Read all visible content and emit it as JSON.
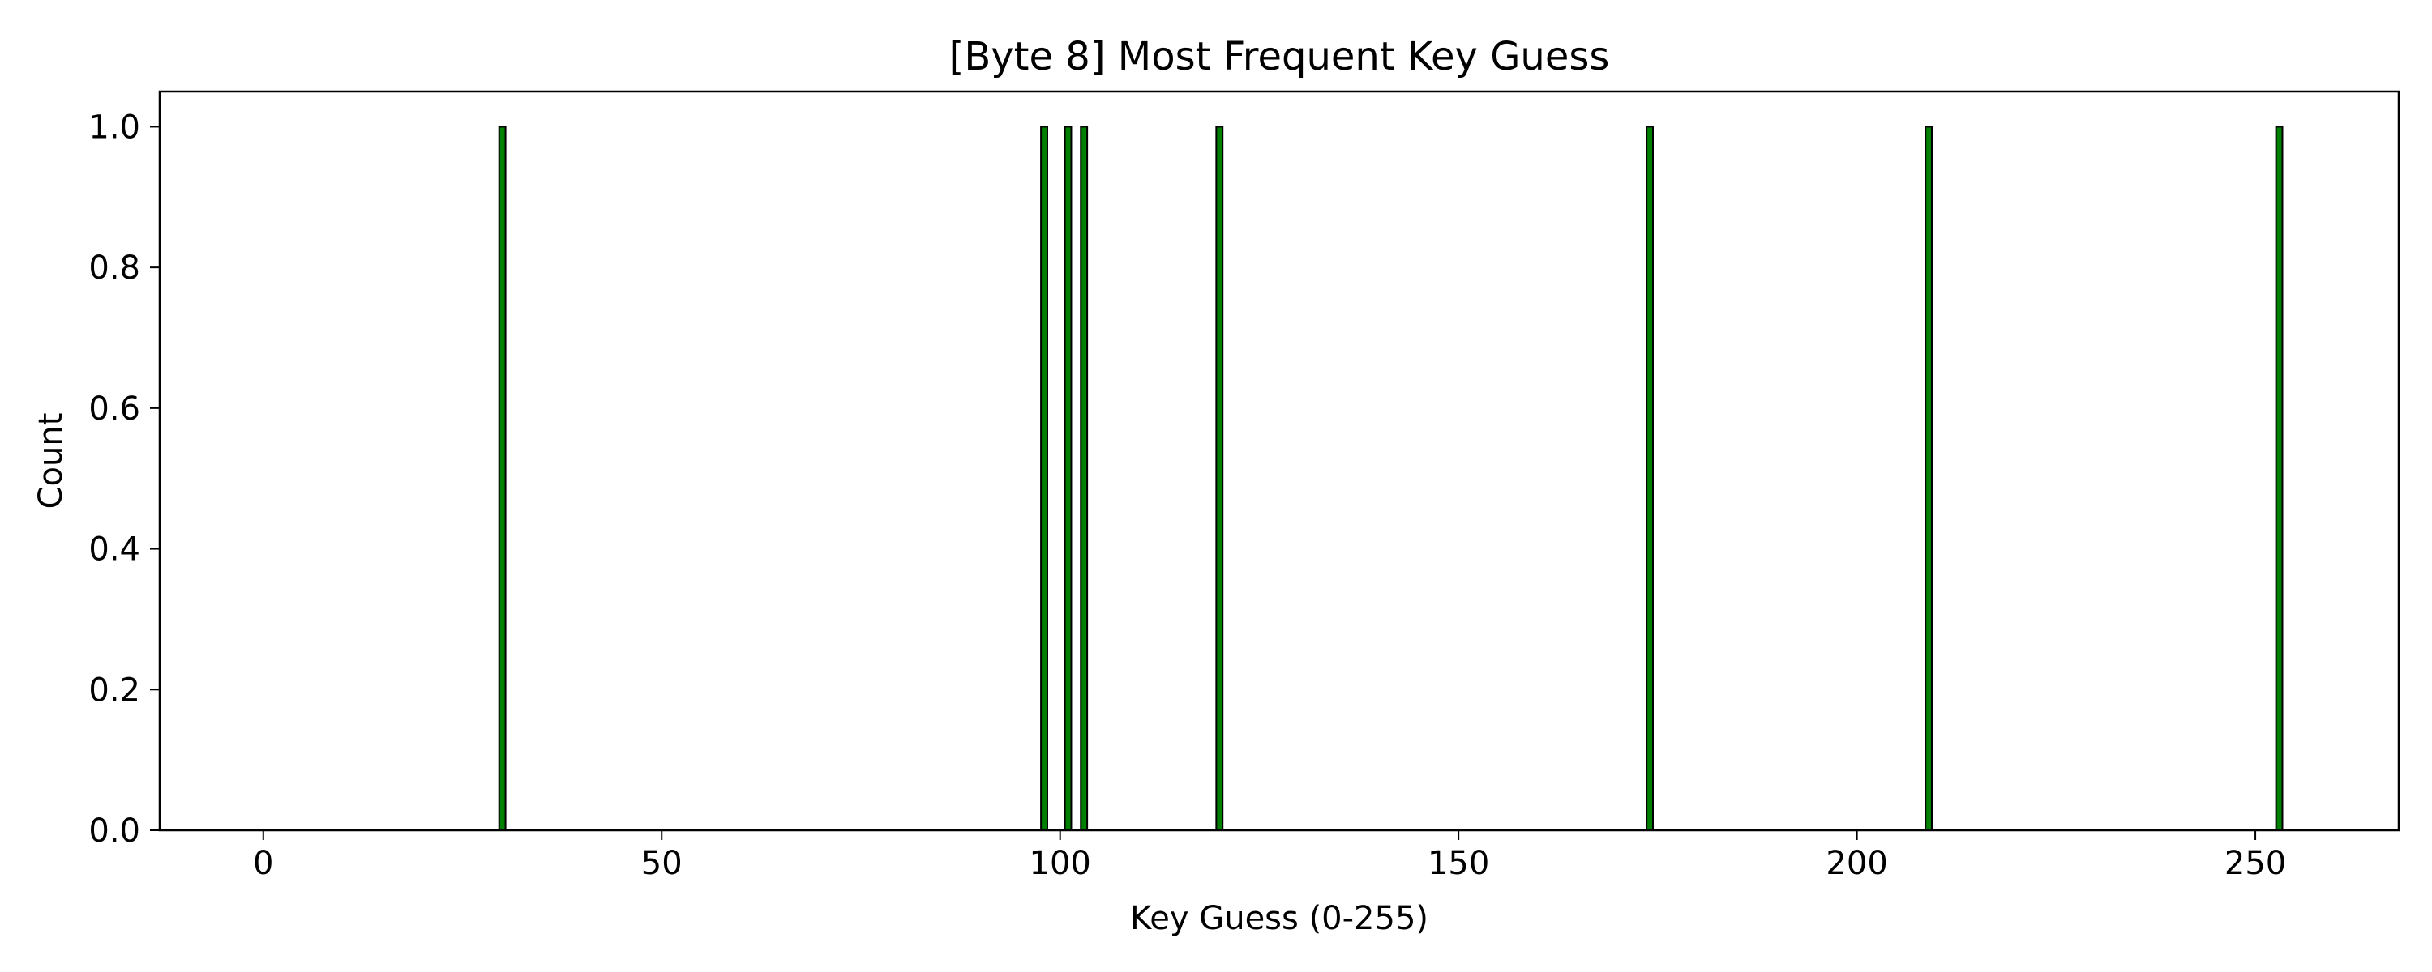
{
  "chart_data": {
    "type": "bar",
    "title": "[Byte 8] Most Frequent Key Guess",
    "xlabel": "Key Guess (0-255)",
    "ylabel": "Count",
    "xlim": [
      -13,
      268
    ],
    "ylim": [
      0,
      1.05
    ],
    "xticks": [
      0,
      50,
      100,
      150,
      200,
      250
    ],
    "yticks": [
      0.0,
      0.2,
      0.4,
      0.6,
      0.8,
      1.0
    ],
    "xtick_labels": [
      "0",
      "50",
      "100",
      "150",
      "200",
      "250"
    ],
    "ytick_labels": [
      "0.0",
      "0.2",
      "0.4",
      "0.6",
      "0.8",
      "1.0"
    ],
    "x_range": [
      0,
      255
    ],
    "x": [
      30,
      98,
      101,
      103,
      120,
      174,
      209,
      253
    ],
    "values": [
      1,
      1,
      1,
      1,
      1,
      1,
      1,
      1
    ],
    "grid": false,
    "legend": "none",
    "bar_color": "#008000",
    "edge_color": "#000000"
  }
}
